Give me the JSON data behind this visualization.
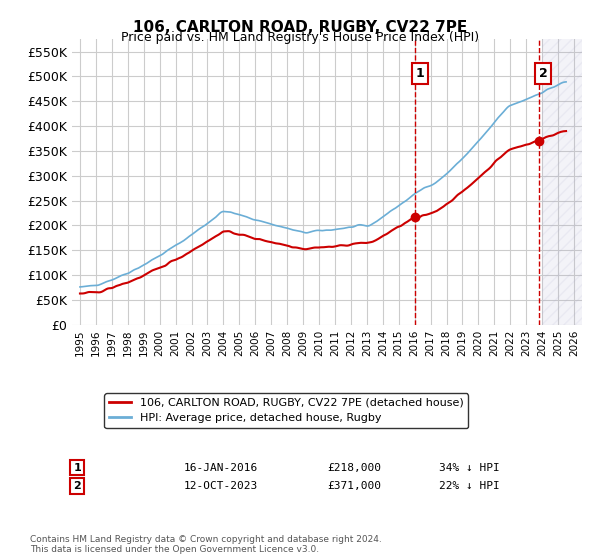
{
  "title": "106, CARLTON ROAD, RUGBY, CV22 7PE",
  "subtitle": "Price paid vs. HM Land Registry's House Price Index (HPI)",
  "hpi_color": "#6baed6",
  "price_color": "#cc0000",
  "annotation_color": "#cc0000",
  "background_color": "#ffffff",
  "grid_color": "#cccccc",
  "hatch_color": "#e8e8f0",
  "ylim": [
    0,
    575000
  ],
  "yticks": [
    0,
    50000,
    100000,
    150000,
    200000,
    250000,
    300000,
    350000,
    400000,
    450000,
    500000,
    550000
  ],
  "xlabel_years": [
    "1995",
    "1996",
    "1997",
    "1998",
    "1999",
    "2000",
    "2001",
    "2002",
    "2003",
    "2004",
    "2005",
    "2006",
    "2007",
    "2008",
    "2009",
    "2010",
    "2011",
    "2012",
    "2013",
    "2014",
    "2015",
    "2016",
    "2017",
    "2018",
    "2019",
    "2020",
    "2021",
    "2022",
    "2023",
    "2024",
    "2025",
    "2026"
  ],
  "sale1_date": "16-JAN-2016",
  "sale1_price": 218000,
  "sale1_hpi_pct": "34% ↓ HPI",
  "sale2_date": "12-OCT-2023",
  "sale2_price": 371000,
  "sale2_hpi_pct": "22% ↓ HPI",
  "legend_label_price": "106, CARLTON ROAD, RUGBY, CV22 7PE (detached house)",
  "legend_label_hpi": "HPI: Average price, detached house, Rugby",
  "footer": "Contains HM Land Registry data © Crown copyright and database right 2024.\nThis data is licensed under the Open Government Licence v3.0."
}
